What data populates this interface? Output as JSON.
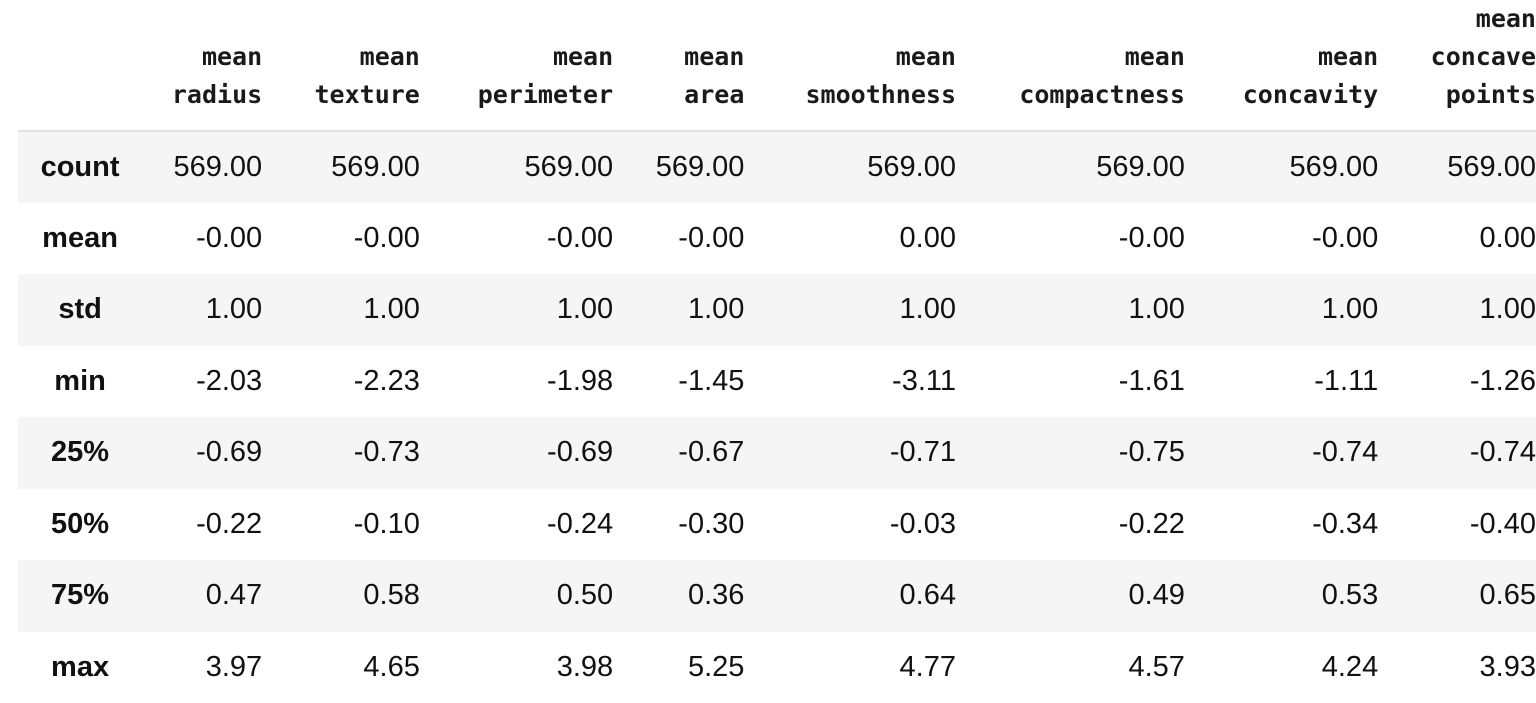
{
  "table": {
    "columns": [
      [
        "mean",
        "radius"
      ],
      [
        "mean",
        "texture"
      ],
      [
        "mean",
        "perimeter"
      ],
      [
        "mean",
        "area"
      ],
      [
        "mean",
        "smoothness"
      ],
      [
        "mean",
        "compactness"
      ],
      [
        "mean",
        "concavity"
      ],
      [
        "mean",
        "concave",
        "points"
      ]
    ],
    "rows": [
      {
        "label": "count",
        "values": [
          "569.00",
          "569.00",
          "569.00",
          "569.00",
          "569.00",
          "569.00",
          "569.00",
          "569.00"
        ]
      },
      {
        "label": "mean",
        "values": [
          "-0.00",
          "-0.00",
          "-0.00",
          "-0.00",
          "0.00",
          "-0.00",
          "-0.00",
          "0.00"
        ]
      },
      {
        "label": "std",
        "values": [
          "1.00",
          "1.00",
          "1.00",
          "1.00",
          "1.00",
          "1.00",
          "1.00",
          "1.00"
        ]
      },
      {
        "label": "min",
        "values": [
          "-2.03",
          "-2.23",
          "-1.98",
          "-1.45",
          "-3.11",
          "-1.61",
          "-1.11",
          "-1.26"
        ]
      },
      {
        "label": "25%",
        "values": [
          "-0.69",
          "-0.73",
          "-0.69",
          "-0.67",
          "-0.71",
          "-0.75",
          "-0.74",
          "-0.74"
        ]
      },
      {
        "label": "50%",
        "values": [
          "-0.22",
          "-0.10",
          "-0.24",
          "-0.30",
          "-0.03",
          "-0.22",
          "-0.34",
          "-0.40"
        ]
      },
      {
        "label": "75%",
        "values": [
          "0.47",
          "0.58",
          "0.50",
          "0.36",
          "0.64",
          "0.49",
          "0.53",
          "0.65"
        ]
      },
      {
        "label": "max",
        "values": [
          "3.97",
          "4.65",
          "3.98",
          "5.25",
          "4.77",
          "4.57",
          "4.24",
          "3.93"
        ]
      }
    ]
  }
}
